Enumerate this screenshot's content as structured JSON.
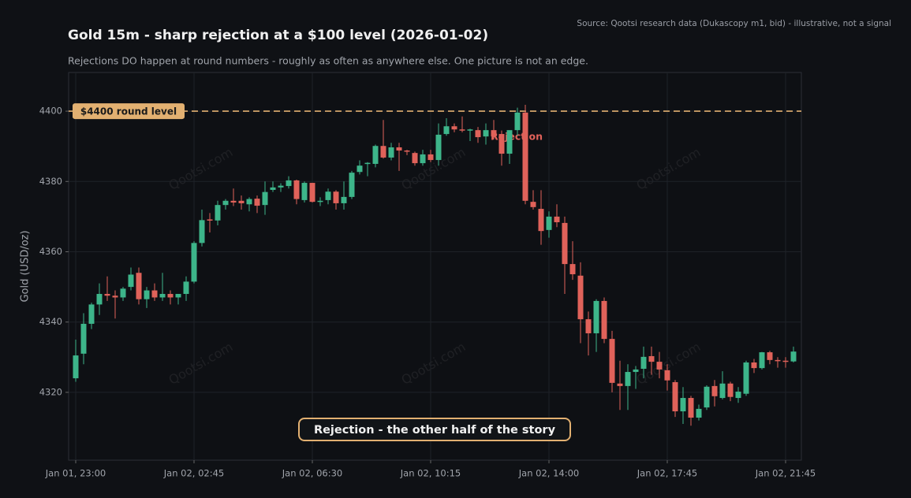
{
  "chart_data": {
    "type": "candlestick",
    "title": "Gold 15m - sharp rejection at a $100 level (2026-01-02)",
    "subtitle": "Rejections DO happen at round numbers - roughly as often as anywhere else. One picture is not an edge.",
    "source": "Source: Qootsi research data (Dukascopy m1, bid) - illustrative, not a signal",
    "y_label": "Gold (USD/oz)",
    "watermark": "Qootsi.com",
    "level": {
      "value": 4400,
      "label": "$4400 round level",
      "color": "#e2b071"
    },
    "annotations": [
      {
        "text": "Rejection",
        "color": "#e0625a"
      },
      {
        "text": "Rejection - the other half of the story",
        "color": "#e2b071"
      }
    ],
    "up_color": "#3db58a",
    "down_color": "#e0625a",
    "categories": [
      "Jan 01, 23:00",
      null,
      null,
      null,
      null,
      null,
      null,
      null,
      null,
      null,
      null,
      null,
      null,
      null,
      null,
      "Jan 02, 02:45",
      null,
      null,
      null,
      null,
      null,
      null,
      null,
      null,
      null,
      null,
      null,
      null,
      null,
      null,
      "Jan 02, 06:30",
      null,
      null,
      null,
      null,
      null,
      null,
      null,
      null,
      null,
      null,
      null,
      null,
      null,
      null,
      "Jan 02, 10:15",
      null,
      null,
      null,
      null,
      null,
      null,
      null,
      null,
      null,
      null,
      null,
      null,
      null,
      null,
      "Jan 02, 14:00",
      null,
      null,
      null,
      null,
      null,
      null,
      null,
      null,
      null,
      null,
      null,
      null,
      null,
      null,
      "Jan 02, 17:45",
      null,
      null,
      null,
      null,
      null,
      null,
      null,
      null,
      null,
      null,
      null,
      null,
      null,
      null,
      "Jan 02, 21:45",
      null
    ],
    "open": [
      4324,
      4331,
      4339.5,
      4345,
      4348,
      4347.5,
      4347,
      4350,
      4354,
      4346.5,
      4349,
      4347,
      4348,
      4347,
      4348,
      4351.5,
      4362.5,
      4369.2,
      4368.9,
      4373.3,
      4374.5,
      4374.5,
      4373.5,
      4375.1,
      4373.3,
      4377.6,
      4378.3,
      4378.7,
      4380.3,
      4374.7,
      4379.6,
      4374.2,
      4374.7,
      4377.1,
      4373.8,
      4375.6,
      4382.7,
      4385,
      4385,
      4390.1,
      4386.8,
      4389.7,
      4388.8,
      4388.1,
      4385.2,
      4387.7,
      4386.1,
      4393.5,
      4395.7,
      4394.8,
      4394.5,
      4394.6,
      4392.8,
      4394.6,
      4393.5,
      4387.9,
      4394.6,
      4399.6,
      4374.2,
      4372.2,
      4366.2,
      4370,
      4368.2,
      4356.5,
      4353.2,
      4340.8,
      4336.8,
      4346,
      4335.2,
      4322.5,
      4321.8,
      4325.8,
      4326.7,
      4330.3,
      4328.7,
      4326.3,
      4322.9,
      4314.6,
      4318.4,
      4312.8,
      4315.7,
      4321.8,
      4318.4,
      4322.5,
      4318.4,
      4319.6,
      4328.5,
      4326.9,
      4331.4,
      4329.2,
      4329,
      4328.8
    ],
    "high": [
      4335,
      4342.5,
      4345.5,
      4351,
      4353,
      4349,
      4350,
      4355.5,
      4355.5,
      4350,
      4351,
      4354,
      4349,
      4348,
      4353,
      4363,
      4372,
      4371,
      4374.5,
      4375,
      4378,
      4376,
      4375.5,
      4376,
      4380,
      4380,
      4379.5,
      4381.5,
      4380.5,
      4380,
      4379.6,
      4375.5,
      4378,
      4377.5,
      4380,
      4383,
      4386,
      4385.5,
      4390.5,
      4397.5,
      4391,
      4391,
      4389,
      4388.5,
      4389,
      4389,
      4396.5,
      4398,
      4396.5,
      4398.5,
      4395,
      4395.5,
      4396.5,
      4397.5,
      4394.5,
      4394.5,
      4401,
      4401.8,
      4377.5,
      4377.5,
      4371.5,
      4373.5,
      4370,
      4363,
      4357,
      4343,
      4346.5,
      4347,
      4337.5,
      4329,
      4328,
      4327.5,
      4333,
      4333,
      4331.5,
      4328,
      4323.5,
      4321.5,
      4319,
      4316.5,
      4322,
      4323.5,
      4326,
      4323,
      4321.5,
      4329,
      4329.5,
      4331.5,
      4331.8,
      4330,
      4330,
      4333
    ],
    "low": [
      4323,
      4328,
      4338,
      4342,
      4346,
      4341,
      4346,
      4349,
      4345,
      4344,
      4346,
      4346,
      4345,
      4345,
      4346,
      4351,
      4361.5,
      4365.5,
      4367.5,
      4372,
      4373,
      4372,
      4371.5,
      4371,
      4370.5,
      4377,
      4377,
      4378,
      4373.5,
      4374,
      4374,
      4373,
      4373.5,
      4372,
      4372,
      4375,
      4382,
      4381.5,
      4384,
      4386.5,
      4386,
      4383,
      4387.5,
      4384.5,
      4384.5,
      4385.5,
      4384.5,
      4393,
      4394,
      4394,
      4391.5,
      4391,
      4390.5,
      4392,
      4384.5,
      4385,
      4393,
      4373.5,
      4372,
      4362,
      4364,
      4367,
      4348,
      4352,
      4334,
      4330.5,
      4331.5,
      4334,
      4320,
      4315,
      4315,
      4321,
      4324,
      4325,
      4324,
      4320.5,
      4313,
      4311,
      4310.5,
      4312,
      4315,
      4316,
      4318,
      4317.5,
      4317,
      4319,
      4325.5,
      4326.5,
      4328,
      4327,
      4327,
      4328.5
    ],
    "close": [
      4330.5,
      4339.5,
      4345,
      4348,
      4347.5,
      4347,
      4349.5,
      4353.5,
      4346.5,
      4349,
      4347,
      4348,
      4347,
      4348,
      4351.5,
      4362.5,
      4369,
      4368.9,
      4373.3,
      4374.5,
      4374,
      4373.8,
      4375,
      4373.1,
      4377,
      4378.3,
      4378.8,
      4380.3,
      4375,
      4379.6,
      4374.2,
      4374.5,
      4377.1,
      4373.8,
      4375.6,
      4382.5,
      4384.5,
      4385.3,
      4390.1,
      4386.8,
      4389.7,
      4388.8,
      4388.6,
      4385.2,
      4387.7,
      4386.1,
      4393.3,
      4395.7,
      4394.8,
      4394.5,
      4394.8,
      4392.6,
      4394.6,
      4392.8,
      4387.9,
      4394.6,
      4399.6,
      4374.5,
      4372.7,
      4365.9,
      4370,
      4368.4,
      4356.5,
      4353.6,
      4340.8,
      4336.8,
      4346,
      4335.2,
      4322.7,
      4321.8,
      4325.8,
      4326.5,
      4330.1,
      4328.7,
      4326.5,
      4323.4,
      4314.6,
      4318.4,
      4312.8,
      4315.3,
      4321.6,
      4318.9,
      4322.5,
      4318.7,
      4320.2,
      4328.5,
      4326.9,
      4331.4,
      4329.2,
      4329,
      4328.8,
      4331.6
    ],
    "ylim": [
      4300.7,
      4411
    ],
    "yticks": [
      4320,
      4340,
      4360,
      4380,
      4400
    ],
    "grid": true
  }
}
